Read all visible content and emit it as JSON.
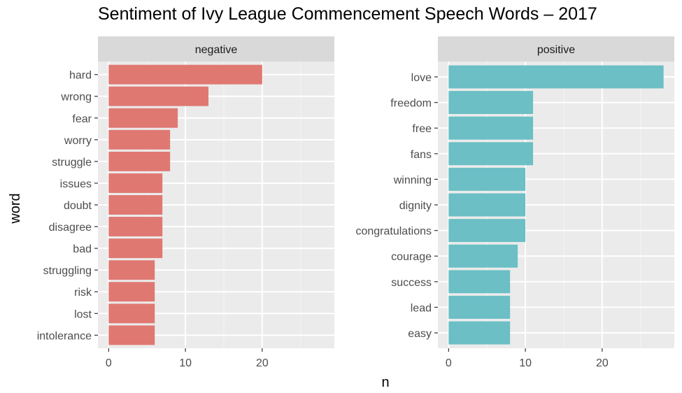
{
  "chart_data": {
    "type": "bar",
    "orientation": "horizontal",
    "title": "Sentiment of Ivy League Commencement Speech Words – 2017",
    "xlabel": "n",
    "ylabel": "word",
    "xlim": [
      0,
      28
    ],
    "x_ticks": [
      0,
      10,
      20
    ],
    "grid": true,
    "legend": "none",
    "panels": [
      {
        "name": "negative",
        "color": "#E07872",
        "categories": [
          "hard",
          "wrong",
          "fear",
          "worry",
          "struggle",
          "issues",
          "doubt",
          "disagree",
          "bad",
          "struggling",
          "risk",
          "lost",
          "intolerance"
        ],
        "values": [
          20,
          13,
          9,
          8,
          8,
          7,
          7,
          7,
          7,
          6,
          6,
          6,
          6
        ]
      },
      {
        "name": "positive",
        "color": "#6BBFC5",
        "categories": [
          "love",
          "freedom",
          "free",
          "fans",
          "winning",
          "dignity",
          "congratulations",
          "courage",
          "success",
          "lead",
          "easy"
        ],
        "values": [
          28,
          11,
          11,
          11,
          10,
          10,
          10,
          9,
          8,
          8,
          8
        ]
      }
    ]
  }
}
